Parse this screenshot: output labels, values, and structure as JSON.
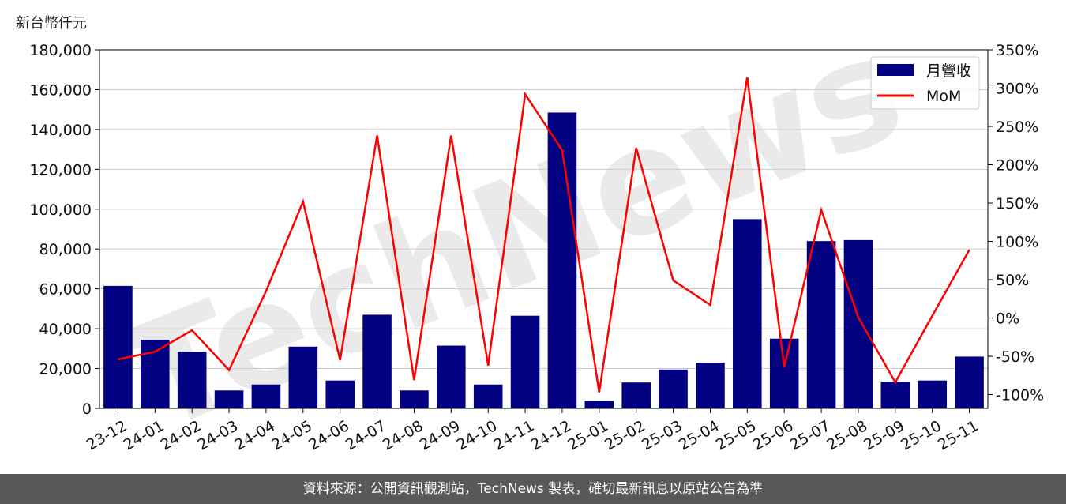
{
  "chart_data": {
    "type": "bar",
    "unit_label": "新台幣仟元",
    "categories": [
      "23-12",
      "24-01",
      "24-02",
      "24-03",
      "24-04",
      "24-05",
      "24-06",
      "24-07",
      "24-08",
      "24-09",
      "24-10",
      "24-11",
      "24-12",
      "25-01",
      "25-02",
      "25-03",
      "25-04",
      "25-05",
      "25-06",
      "25-07",
      "25-08",
      "25-09",
      "25-10",
      "25-11"
    ],
    "series": [
      {
        "name": "月營收",
        "kind": "bar",
        "axis": "left",
        "color": "#000080",
        "values": [
          61500,
          34500,
          28500,
          9000,
          12000,
          31000,
          14000,
          47000,
          9000,
          31500,
          12000,
          46500,
          148500,
          3800,
          13000,
          19500,
          23000,
          95000,
          35000,
          84000,
          84500,
          13500,
          14000,
          26000
        ]
      },
      {
        "name": "MoM",
        "kind": "line",
        "axis": "right",
        "color": "#ff0000",
        "values": [
          -54,
          -44,
          -16,
          -68,
          35,
          152,
          -55,
          238,
          -81,
          238,
          -62,
          292,
          219,
          -97,
          222,
          49,
          17,
          314,
          -64,
          141,
          1,
          -84,
          3,
          89
        ]
      }
    ],
    "y_left": {
      "min": 0,
      "max": 180000,
      "ticks": [
        "0",
        "20,000",
        "40,000",
        "60,000",
        "80,000",
        "100,000",
        "120,000",
        "140,000",
        "160,000",
        "180,000"
      ]
    },
    "y_right": {
      "min": -118,
      "max": 350,
      "ticks": [
        "-100%",
        "-50%",
        "0%",
        "50%",
        "100%",
        "150%",
        "200%",
        "250%",
        "300%",
        "350%"
      ],
      "tick_values": [
        -100,
        -50,
        0,
        50,
        100,
        150,
        200,
        250,
        300,
        350
      ]
    },
    "grid": true,
    "legend_position": "top-right"
  },
  "watermark": "TechNews",
  "footer": "資料來源：公開資訊觀測站，TechNews 製表，確切最新訊息以原站公告為準"
}
